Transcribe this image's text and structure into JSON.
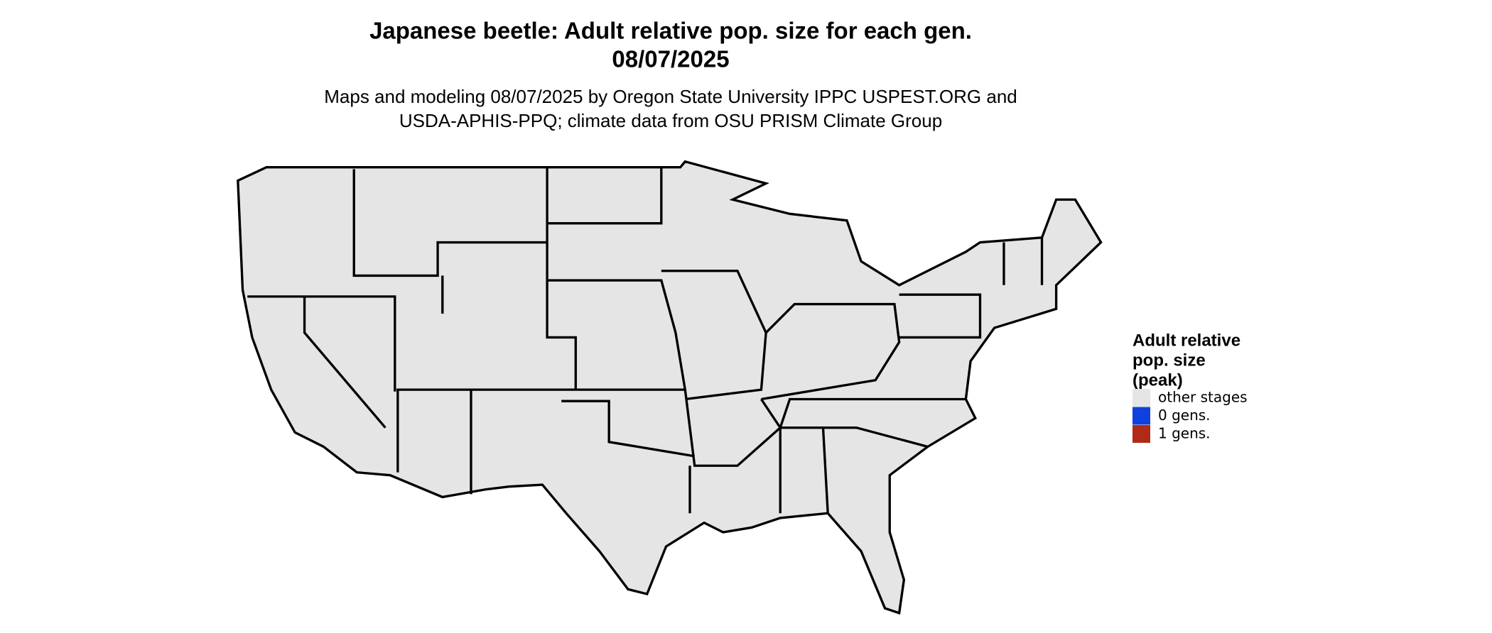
{
  "header": {
    "title_lines": [
      "Japanese beetle: Adult relative pop. size for each gen.",
      "08/07/2025"
    ],
    "subtitle_lines": [
      "Maps and modeling 08/07/2025 by Oregon State University IPPC USPEST.ORG and",
      "USDA-APHIS-PPQ; climate data from OSU PRISM Climate Group"
    ]
  },
  "legend": {
    "title_lines": [
      "Adult relative",
      "pop. size",
      "(peak)"
    ],
    "items": [
      {
        "label": "other stages",
        "color": "#e5e5e5"
      },
      {
        "label": "0 gens.",
        "color": "#1040dd"
      },
      {
        "label": "1 gens.",
        "color": "#b02a17"
      }
    ]
  }
}
